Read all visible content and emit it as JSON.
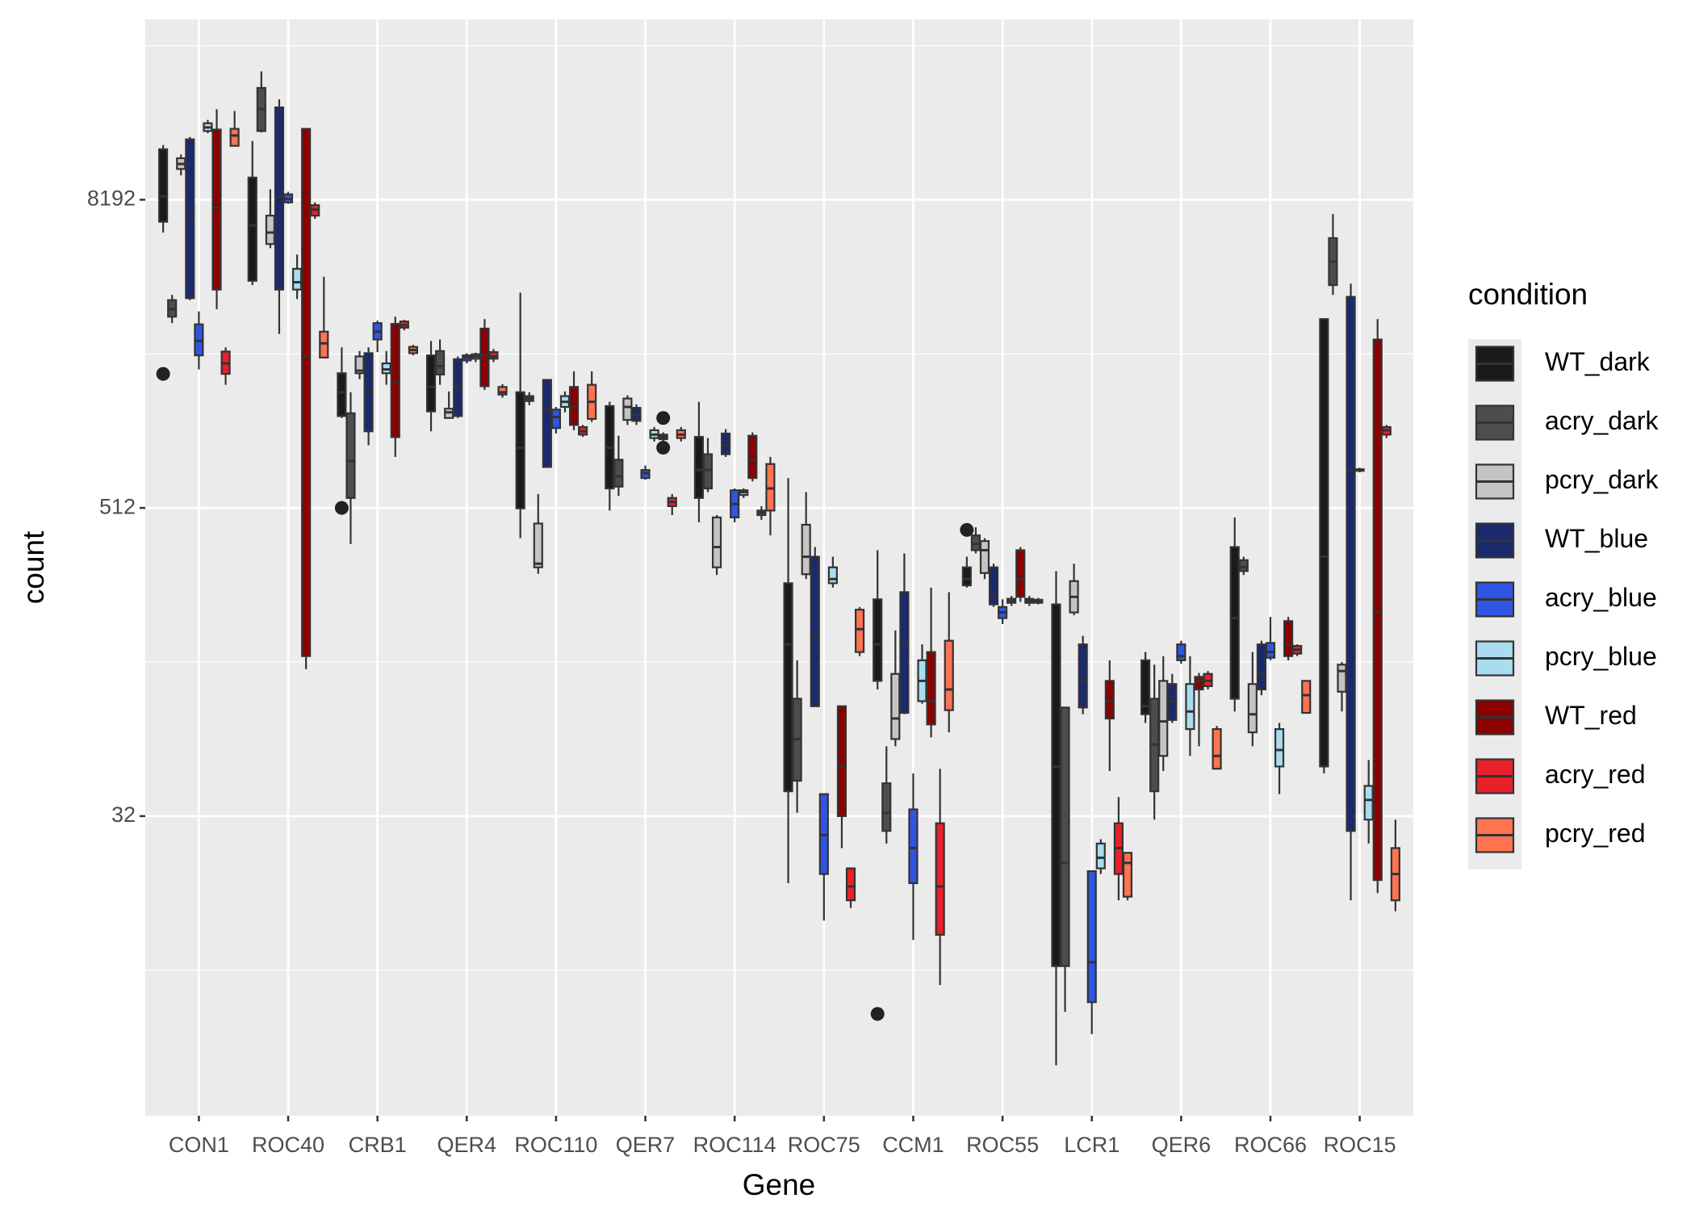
{
  "chart_data": {
    "type": "boxplot",
    "x_label": "Gene",
    "y_label": "count",
    "legend_title": "condition",
    "legend_position": "right",
    "y_scale": "log2",
    "ylim": [
      2.16,
      41500
    ],
    "yticks": [
      32,
      512,
      8192
    ],
    "minor_yticks": [
      8,
      128,
      2048,
      32768
    ],
    "grid": true,
    "categories": [
      "CON1",
      "ROC40",
      "CRB1",
      "QER4",
      "ROC110",
      "QER7",
      "ROC114",
      "ROC75",
      "CCM1",
      "ROC55",
      "LCR1",
      "QER6",
      "ROC66",
      "ROC15"
    ],
    "series": [
      {
        "name": "WT_dark",
        "color": "#1a1a1a",
        "values": [
          [
            6100,
            6720,
            8440,
            12900,
            13400
          ],
          [
            3800,
            3950,
            6500,
            10000,
            13900
          ],
          [
            1150,
            1170,
            1450,
            1720,
            2170
          ],
          [
            1020,
            1220,
            1520,
            2020,
            2300
          ],
          [
            390,
            510,
            880,
            1450,
            3550
          ],
          [
            500,
            610,
            880,
            1280,
            1330
          ],
          [
            450,
            560,
            720,
            970,
            1330
          ],
          [
            17.5,
            40,
            150,
            260,
            670
          ],
          [
            100,
            108,
            150,
            225,
            350
          ],
          [
            250,
            255,
            270,
            300,
            330
          ],
          [
            3.4,
            8.3,
            50,
            215,
            290
          ],
          [
            74,
            80,
            86,
            130,
            140
          ],
          [
            82,
            92,
            190,
            360,
            470
          ],
          [
            47,
            50,
            330,
            2800,
            2800
          ]
        ],
        "outliers": [
          [
            1710
          ],
          [],
          [
            512
          ],
          [],
          [],
          [],
          [],
          [],
          [
            5.4
          ],
          [
            420
          ],
          [],
          [],
          [],
          []
        ]
      },
      {
        "name": "acry_dark",
        "color": "#4d4d4d",
        "values": [
          [
            2700,
            2860,
            3060,
            3320,
            3480
          ],
          [
            15000,
            15200,
            18500,
            22400,
            26000
          ],
          [
            370,
            560,
            780,
            1200,
            1450
          ],
          [
            1550,
            1700,
            1830,
            2100,
            2330
          ],
          [
            1290,
            1340,
            1370,
            1400,
            1450
          ],
          [
            570,
            620,
            680,
            790,
            980
          ],
          [
            590,
            610,
            720,
            830,
            960
          ],
          [
            33,
            44,
            64,
            92,
            130
          ],
          [
            25,
            28,
            33,
            43,
            60
          ],
          [
            340,
            350,
            370,
            400,
            430
          ],
          [
            5.5,
            8.3,
            21,
            85,
            85
          ],
          [
            31,
            40,
            61,
            92,
            125
          ],
          [
            280,
            290,
            300,
            320,
            330
          ],
          [
            3480,
            3800,
            4700,
            5800,
            7200
          ]
        ]
      },
      {
        "name": "pcry_dark",
        "color": "#c4c4c4",
        "values": [
          [
            10200,
            10800,
            11300,
            11900,
            12300
          ],
          [
            5300,
            5500,
            6100,
            7100,
            9000
          ],
          [
            1630,
            1720,
            1760,
            2000,
            2100
          ],
          [
            1150,
            1150,
            1210,
            1250,
            1460
          ],
          [
            283,
            300,
            310,
            445,
            580
          ],
          [
            1080,
            1130,
            1270,
            1370,
            1410
          ],
          [
            280,
            300,
            360,
            470,
            480
          ],
          [
            270,
            282,
            330,
            440,
            590
          ],
          [
            60,
            64,
            77,
            115,
            170
          ],
          [
            270,
            285,
            350,
            380,
            390
          ],
          [
            195,
            200,
            230,
            265,
            310
          ],
          [
            48,
            55,
            75,
            108,
            135
          ],
          [
            60,
            68,
            80,
            105,
            140
          ],
          [
            82,
            98,
            118,
            125,
            128
          ]
        ]
      },
      {
        "name": "WT_blue",
        "color": "#1b2a6e",
        "values": [
          [
            3320,
            3380,
            6930,
            14100,
            14400
          ],
          [
            2450,
            3650,
            8400,
            18800,
            20200
          ],
          [
            900,
            1020,
            1450,
            2060,
            2170
          ],
          [
            1150,
            1170,
            1520,
            1950,
            2000
          ],
          [
            740,
            740,
            1240,
            1620,
            1620
          ],
          [
            1080,
            1120,
            1180,
            1260,
            1300
          ],
          [
            810,
            830,
            900,
            1000,
            1040
          ],
          [
            86,
            86,
            160,
            330,
            360
          ],
          [
            80,
            81,
            150,
            240,
            340
          ],
          [
            210,
            215,
            230,
            300,
            310
          ],
          [
            80,
            85,
            108,
            150,
            162
          ],
          [
            74,
            76,
            90,
            105,
            115
          ],
          [
            95,
            100,
            115,
            150,
            155
          ],
          [
            15,
            28,
            720,
            3420,
            3850
          ]
        ]
      },
      {
        "name": "acry_blue",
        "color": "#2f55e4",
        "values": [
          [
            1780,
            2020,
            2300,
            2670,
            3000
          ],
          [
            7900,
            8000,
            8250,
            8600,
            8800
          ],
          [
            2080,
            2330,
            2500,
            2700,
            2760
          ],
          [
            1880,
            1930,
            1980,
            2020,
            2060
          ],
          [
            1000,
            1050,
            1160,
            1240,
            1270
          ],
          [
            660,
            670,
            700,
            720,
            750
          ],
          [
            450,
            470,
            530,
            600,
            610
          ],
          [
            12.5,
            19,
            27,
            39,
            39
          ],
          [
            10.5,
            17.5,
            24,
            34,
            47
          ],
          [
            180,
            190,
            200,
            210,
            225
          ],
          [
            4.5,
            6.0,
            8.6,
            19.5,
            19.5
          ],
          [
            126,
            130,
            135,
            150,
            155
          ],
          [
            130,
            133,
            140,
            152,
            192
          ],
          [
            705,
            715,
            720,
            725,
            735
          ]
        ]
      },
      {
        "name": "pcry_blue",
        "color": "#a9dcef",
        "values": [
          [
            14900,
            15200,
            15700,
            16300,
            16800
          ],
          [
            3350,
            3650,
            3900,
            4400,
            5000
          ],
          [
            1550,
            1720,
            1780,
            1880,
            2100
          ],
          [
            1900,
            1960,
            2000,
            2040,
            2070
          ],
          [
            1210,
            1270,
            1330,
            1400,
            1460
          ],
          [
            930,
            960,
            990,
            1030,
            1060
          ],
          [
            560,
            575,
            590,
            600,
            610
          ],
          [
            250,
            260,
            270,
            300,
            330
          ],
          [
            88,
            90,
            108,
            130,
            150
          ],
          [
            212,
            218,
            222,
            226,
            232
          ],
          [
            19,
            20,
            22,
            25,
            26
          ],
          [
            55,
            70,
            82,
            105,
            135
          ],
          [
            39,
            50,
            58,
            70,
            74
          ],
          [
            25,
            31,
            37,
            42,
            53
          ]
        ]
      },
      {
        "name": "WT_red",
        "color": "#8b0000",
        "values": [
          [
            3060,
            3650,
            7650,
            15400,
            18500
          ],
          [
            120,
            135,
            2000,
            15500,
            15500
          ],
          [
            810,
            968,
            1580,
            2680,
            2860
          ],
          [
            1480,
            1530,
            2020,
            2570,
            2800
          ],
          [
            1030,
            1080,
            1270,
            1520,
            1750
          ],
          [
            930,
            950,
            970,
            990,
            1010
          ],
          [
            650,
            670,
            790,
            980,
            1010
          ],
          [
            24,
            32,
            50,
            86,
            86
          ],
          [
            65,
            73,
            90,
            140,
            250
          ],
          [
            220,
            230,
            270,
            350,
            360
          ],
          [
            48,
            77,
            90,
            108,
            130
          ],
          [
            60,
            100,
            108,
            112,
            116
          ],
          [
            130,
            135,
            150,
            185,
            192
          ],
          [
            16,
            18,
            200,
            2330,
            2800
          ]
        ],
        "outliers": [
          [],
          [],
          [],
          [],
          [],
          [
            1150,
            880
          ],
          [],
          [],
          [],
          [],
          [],
          [],
          [],
          []
        ]
      },
      {
        "name": "acry_red",
        "color": "#e8202a",
        "values": [
          [
            1550,
            1710,
            1880,
            2090,
            2170
          ],
          [
            6900,
            7100,
            7500,
            7800,
            8000
          ],
          [
            2530,
            2590,
            2650,
            2740,
            2780
          ],
          [
            1900,
            1960,
            2000,
            2080,
            2140
          ],
          [
            970,
            990,
            1020,
            1060,
            1080
          ],
          [
            480,
            520,
            540,
            560,
            580
          ],
          [
            460,
            480,
            490,
            500,
            520
          ],
          [
            14,
            15,
            17,
            20,
            20
          ],
          [
            7,
            11,
            17,
            30,
            49
          ],
          [
            212,
            218,
            222,
            226,
            232
          ],
          [
            15,
            19,
            24,
            30,
            38
          ],
          [
            100,
            103,
            108,
            115,
            118
          ],
          [
            135,
            138,
            143,
            148,
            150
          ],
          [
            960,
            990,
            1030,
            1060,
            1080
          ]
        ]
      },
      {
        "name": "pcry_red",
        "color": "#ff7350",
        "values": [
          [
            13300,
            13300,
            14600,
            15500,
            18200
          ],
          [
            1980,
            1980,
            2250,
            2500,
            4100
          ],
          [
            2020,
            2060,
            2120,
            2180,
            2220
          ],
          [
            1380,
            1420,
            1450,
            1520,
            1560
          ],
          [
            1110,
            1140,
            1330,
            1550,
            1750
          ],
          [
            930,
            960,
            990,
            1030,
            1060
          ],
          [
            400,
            500,
            610,
            760,
            810
          ],
          [
            135,
            140,
            172,
            205,
            210
          ],
          [
            68,
            83,
            100,
            155,
            240
          ],
          [
            215,
            218,
            222,
            224,
            228
          ],
          [
            15,
            15.5,
            21,
            23,
            23
          ],
          [
            49,
            49,
            55,
            70,
            72
          ],
          [
            81,
            81,
            95,
            108,
            108
          ],
          [
            13.6,
            15,
            19,
            24,
            31
          ]
        ]
      }
    ]
  }
}
